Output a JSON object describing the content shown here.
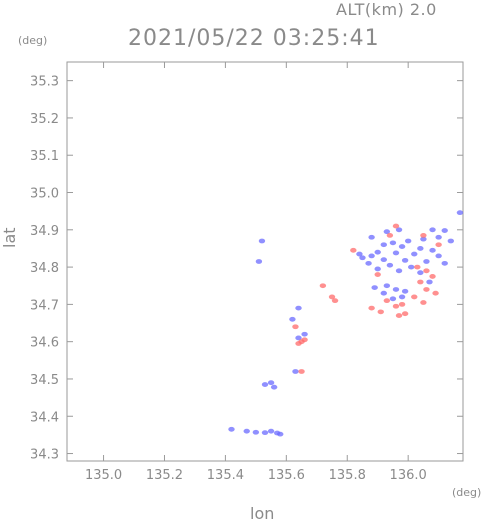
{
  "header": {
    "altitude_label": "ALT(km) 2.0",
    "timestamp": "2021/05/22 03:25:41"
  },
  "axes": {
    "y_unit": "(deg)",
    "x_unit": "(deg)",
    "y_label": "lat",
    "x_label": "lon"
  },
  "chart_data": {
    "type": "scatter",
    "xlabel": "lon",
    "ylabel": "lat",
    "xlim": [
      134.88,
      136.18
    ],
    "ylim": [
      34.28,
      35.35
    ],
    "x_ticks": [
      135.0,
      135.2,
      135.4,
      135.6,
      135.8,
      136.0
    ],
    "x_tick_labels": [
      "135.0",
      "135.2",
      "135.4",
      "135.6",
      "135.8",
      "136.0"
    ],
    "y_ticks": [
      34.3,
      34.4,
      34.5,
      34.6,
      34.7,
      34.8,
      34.9,
      35.0,
      35.1,
      35.2,
      35.3
    ],
    "y_tick_labels": [
      "34.3",
      "34.4",
      "34.5",
      "34.6",
      "34.7",
      "34.8",
      "34.9",
      "35.0",
      "35.1",
      "35.2",
      "35.3"
    ],
    "colors": {
      "blue": "#6b6bff",
      "red": "#ff6b6b",
      "frame": "#9a9a9a"
    },
    "series": [
      {
        "color": "blue",
        "points": [
          [
            136.17,
            34.946
          ],
          [
            136.12,
            34.898
          ],
          [
            136.1,
            34.88
          ],
          [
            136.05,
            34.875
          ],
          [
            136.0,
            34.87
          ],
          [
            135.95,
            34.865
          ],
          [
            135.92,
            34.86
          ],
          [
            135.98,
            34.855
          ],
          [
            136.04,
            34.85
          ],
          [
            136.08,
            34.845
          ],
          [
            135.9,
            34.84
          ],
          [
            135.96,
            34.838
          ],
          [
            136.02,
            34.835
          ],
          [
            136.1,
            34.83
          ],
          [
            135.88,
            34.83
          ],
          [
            135.85,
            34.825
          ],
          [
            135.92,
            34.82
          ],
          [
            135.99,
            34.818
          ],
          [
            136.06,
            34.815
          ],
          [
            136.12,
            34.81
          ],
          [
            135.87,
            34.81
          ],
          [
            135.94,
            34.805
          ],
          [
            136.01,
            34.8
          ],
          [
            135.9,
            34.795
          ],
          [
            135.97,
            34.79
          ],
          [
            136.04,
            34.785
          ],
          [
            135.93,
            34.75
          ],
          [
            135.96,
            34.74
          ],
          [
            135.99,
            34.735
          ],
          [
            135.92,
            34.73
          ],
          [
            135.98,
            34.72
          ],
          [
            135.95,
            34.715
          ],
          [
            135.88,
            34.88
          ],
          [
            135.93,
            34.895
          ],
          [
            135.97,
            34.9
          ],
          [
            136.08,
            34.9
          ],
          [
            136.14,
            34.87
          ],
          [
            135.84,
            34.835
          ],
          [
            136.07,
            34.76
          ],
          [
            135.89,
            34.745
          ],
          [
            135.53,
            34.485
          ],
          [
            135.55,
            34.49
          ],
          [
            135.56,
            34.478
          ],
          [
            135.51,
            34.815
          ],
          [
            135.52,
            34.87
          ],
          [
            135.63,
            34.52
          ],
          [
            135.64,
            34.61
          ],
          [
            135.66,
            34.62
          ],
          [
            135.62,
            34.66
          ],
          [
            135.64,
            34.69
          ],
          [
            135.42,
            34.365
          ],
          [
            135.47,
            34.36
          ],
          [
            135.5,
            34.357
          ],
          [
            135.53,
            34.356
          ],
          [
            135.55,
            34.36
          ],
          [
            135.57,
            34.355
          ],
          [
            135.58,
            34.352
          ]
        ]
      },
      {
        "color": "red",
        "points": [
          [
            135.96,
            34.91
          ],
          [
            135.94,
            34.885
          ],
          [
            136.05,
            34.885
          ],
          [
            136.03,
            34.8
          ],
          [
            136.06,
            34.79
          ],
          [
            136.08,
            34.775
          ],
          [
            136.04,
            34.76
          ],
          [
            136.06,
            34.74
          ],
          [
            136.09,
            34.73
          ],
          [
            135.98,
            34.7
          ],
          [
            135.96,
            34.695
          ],
          [
            135.93,
            34.71
          ],
          [
            135.99,
            34.675
          ],
          [
            135.97,
            34.67
          ],
          [
            135.91,
            34.68
          ],
          [
            135.88,
            34.69
          ],
          [
            136.02,
            34.72
          ],
          [
            136.05,
            34.705
          ],
          [
            135.75,
            34.72
          ],
          [
            135.76,
            34.71
          ],
          [
            135.72,
            34.75
          ],
          [
            135.82,
            34.845
          ],
          [
            136.1,
            34.86
          ],
          [
            135.65,
            34.6
          ],
          [
            135.64,
            34.595
          ],
          [
            135.66,
            34.605
          ],
          [
            135.63,
            34.64
          ],
          [
            135.65,
            34.52
          ],
          [
            135.9,
            34.78
          ]
        ]
      }
    ]
  }
}
